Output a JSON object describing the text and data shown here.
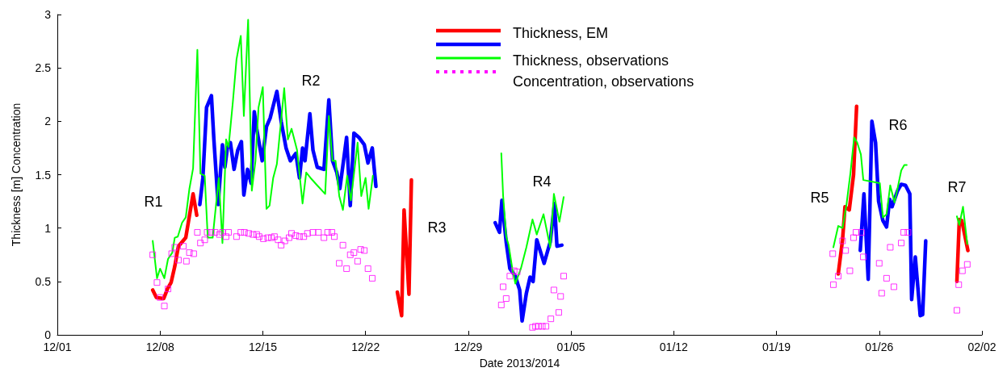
{
  "chart_data": {
    "type": "line",
    "xlabel": "Date 2013/2014",
    "ylabel": "Thickness [m] Concentration",
    "xlim": [
      "2013-12-01",
      "2014-02-02"
    ],
    "xticks": [
      {
        "value": "2013-12-01",
        "label": "12/01"
      },
      {
        "value": "2013-12-08",
        "label": "12/08"
      },
      {
        "value": "2013-12-15",
        "label": "12/15"
      },
      {
        "value": "2013-12-22",
        "label": "12/22"
      },
      {
        "value": "2013-12-29",
        "label": "12/29"
      },
      {
        "value": "2014-01-05",
        "label": "01/05"
      },
      {
        "value": "2014-01-12",
        "label": "01/12"
      },
      {
        "value": "2014-01-19",
        "label": "01/19"
      },
      {
        "value": "2014-01-26",
        "label": "01/26"
      },
      {
        "value": "2014-02-02",
        "label": "02/02"
      }
    ],
    "ylim": [
      0,
      3
    ],
    "yticks": [
      0,
      0.5,
      1,
      1.5,
      2,
      2.5,
      3
    ],
    "grid": false,
    "legend": "top",
    "annotations": [
      "R1",
      "R2",
      "R3",
      "R4",
      "R5",
      "R6",
      "R7"
    ],
    "series": [
      {
        "name": "Thickness, EM",
        "color": "#ff0000",
        "x": [
          "2013-12-07T12:00",
          "2013-12-07T18:00",
          "2013-12-08T06:00",
          "2013-12-08T12:00",
          "2013-12-08T18:00",
          "2013-12-09T00:00",
          "2013-12-09T06:00",
          "2013-12-09T18:00",
          "2013-12-10T06:00",
          "2013-12-10T12:00",
          "2013-12-17T00:00",
          "2013-12-24T04:00",
          "2013-12-24T11:00",
          "2013-12-24T15:00",
          "2013-12-24T23:00",
          "2013-12-25T03:00",
          "2014-01-10T00:00",
          "2014-01-23T05:00",
          "2014-01-23T12:00",
          "2014-01-23T16:00",
          "2014-01-23T23:00",
          "2014-01-24T06:00",
          "2014-01-24T11:00",
          "2014-01-28T00:00",
          "2014-01-31T07:00",
          "2014-01-31T11:00",
          "2014-01-31T15:00",
          "2014-02-01T01:00"
        ],
        "values": [
          0.42,
          0.35,
          0.34,
          0.43,
          0.49,
          0.64,
          0.83,
          0.91,
          1.32,
          1.12,
          null,
          0.4,
          0.18,
          1.17,
          0.38,
          1.45,
          null,
          0.57,
          0.89,
          1.2,
          1.17,
          1.5,
          2.14,
          null,
          0.5,
          1.08,
          1.07,
          0.79
        ]
      },
      {
        "color": "#0000ff",
        "x": [
          "2013-12-10T17:00",
          "2013-12-10T22:00",
          "2013-12-11T04:00",
          "2013-12-11T12:00",
          "2013-12-11T16:00",
          "2013-12-11T23:00",
          "2013-12-12T06:00",
          "2013-12-12T10:00",
          "2013-12-12T14:00",
          "2013-12-12T19:00",
          "2013-12-13T01:00",
          "2013-12-13T07:00",
          "2013-12-13T13:00",
          "2013-12-13T17:00",
          "2013-12-13T23:00",
          "2013-12-14T05:00",
          "2013-12-14T10:00",
          "2013-12-14T14:00",
          "2013-12-14T23:00",
          "2013-12-15T06:00",
          "2013-12-15T12:00",
          "2013-12-15T23:00",
          "2013-12-16T06:00",
          "2013-12-16T14:00",
          "2013-12-16T21:00",
          "2013-12-17T06:00",
          "2013-12-17T12:00",
          "2013-12-17T17:00",
          "2013-12-17T21:00",
          "2013-12-18T05:00",
          "2013-12-18T10:00",
          "2013-12-18T17:00",
          "2013-12-19T04:00",
          "2013-12-19T12:00",
          "2013-12-19T18:00",
          "2013-12-20T01:00",
          "2013-12-20T06:00",
          "2013-12-20T17:00",
          "2013-12-20T23:00",
          "2013-12-21T05:00",
          "2013-12-21T13:00",
          "2013-12-21T22:00",
          "2013-12-22T04:00",
          "2013-12-22T11:00",
          "2013-12-22T17:00",
          "2013-12-27T00:00",
          "2013-12-30T20:00",
          "2013-12-31T03:00",
          "2013-12-31T07:00",
          "2013-12-31T14:00",
          "2013-12-31T20:00",
          "2014-01-01T05:00",
          "2014-01-01T12:00",
          "2014-01-01T16:00",
          "2014-01-01T23:00",
          "2014-01-02T05:00",
          "2014-01-02T10:00",
          "2014-01-02T16:00",
          "2014-01-03T04:00",
          "2014-01-03T14:00",
          "2014-01-03T21:00",
          "2014-01-04T01:00",
          "2014-01-04T09:00",
          "2014-01-15T00:00",
          "2014-01-24T17:00",
          "2014-01-24T23:00",
          "2014-01-25T06:00",
          "2014-01-25T12:00",
          "2014-01-25T18:00",
          "2014-01-25T23:00",
          "2014-01-26T06:00",
          "2014-01-26T12:00",
          "2014-01-26T17:00",
          "2014-01-26T21:00",
          "2014-01-27T06:00",
          "2014-01-27T12:00",
          "2014-01-27T19:00",
          "2014-01-28T02:00",
          "2014-01-28T05:00",
          "2014-01-28T11:00",
          "2014-01-28T19:00",
          "2014-01-28T23:00",
          "2014-01-29T04:00"
        ],
        "values": [
          1.22,
          1.47,
          2.13,
          2.24,
          1.83,
          1.22,
          1.78,
          1.57,
          1.75,
          1.8,
          1.55,
          1.73,
          1.81,
          1.31,
          1.55,
          1.42,
          2.09,
          1.93,
          1.63,
          1.95,
          2.03,
          2.28,
          2.0,
          1.75,
          1.63,
          1.7,
          1.47,
          1.75,
          1.63,
          2.07,
          1.73,
          1.57,
          1.55,
          2.2,
          1.63,
          1.52,
          1.37,
          1.85,
          1.21,
          1.89,
          1.85,
          1.78,
          1.61,
          1.75,
          1.39,
          null,
          1.05,
          0.96,
          1.26,
          0.87,
          0.62,
          0.55,
          0.42,
          0.13,
          0.39,
          0.54,
          0.5,
          0.89,
          0.67,
          0.87,
          1.23,
          0.83,
          0.84,
          null,
          0.79,
          1.32,
          0.52,
          2.0,
          1.8,
          1.25,
          1.07,
          1.01,
          1.27,
          1.2,
          1.35,
          1.41,
          1.4,
          1.32,
          0.33,
          0.73,
          0.18,
          0.19,
          0.88
        ]
      },
      {
        "name": "Thickness, observations",
        "color": "#00ff00",
        "x": [
          "2013-12-07T12:00",
          "2013-12-07T19:00",
          "2013-12-08T00:00",
          "2013-12-08T07:00",
          "2013-12-08T13:00",
          "2013-12-08T20:00",
          "2013-12-09T00:00",
          "2013-12-09T05:00",
          "2013-12-09T12:00",
          "2013-12-09T18:00",
          "2013-12-10T00:00",
          "2013-12-10T06:00",
          "2013-12-10T13:00",
          "2013-12-10T18:00",
          "2013-12-11T01:00",
          "2013-12-11T06:00",
          "2013-12-11T14:00",
          "2013-12-12T00:00",
          "2013-12-12T06:00",
          "2013-12-12T12:00",
          "2013-12-12T16:00",
          "2013-12-12T23:00",
          "2013-12-13T05:00",
          "2013-12-13T12:00",
          "2013-12-13T17:00",
          "2013-12-14T00:00",
          "2013-12-14T06:00",
          "2013-12-14T12:00",
          "2013-12-14T17:00",
          "2013-12-15T00:00",
          "2013-12-15T06:00",
          "2013-12-15T11:00",
          "2013-12-15T17:00",
          "2013-12-15T23:00",
          "2013-12-16T11:00",
          "2013-12-16T17:00",
          "2013-12-16T23:00",
          "2013-12-17T08:00",
          "2013-12-17T17:00",
          "2013-12-17T23:00",
          "2013-12-18T06:00",
          "2013-12-18T17:00",
          "2013-12-19T06:00",
          "2013-12-19T12:00",
          "2013-12-19T18:00",
          "2013-12-19T23:00",
          "2013-12-20T05:00",
          "2013-12-20T11:00",
          "2013-12-20T18:00",
          "2013-12-21T00:00",
          "2013-12-21T11:00",
          "2013-12-21T17:00",
          "2013-12-22T00:00",
          "2013-12-22T05:00",
          "2013-12-22T12:00",
          "2013-12-27T00:00",
          "2013-12-31T06:00",
          "2013-12-31T09:00",
          "2013-12-31T14:00",
          "2013-12-31T18:00",
          "2014-01-01T00:00",
          "2014-01-01T05:00",
          "2014-01-01T14:00",
          "2014-01-01T23:00",
          "2014-01-02T09:00",
          "2014-01-02T16:00",
          "2014-01-03T03:00",
          "2014-01-03T14:00",
          "2014-01-03T20:00",
          "2014-01-04T05:00",
          "2014-01-04T12:00",
          "2014-01-15T00:00",
          "2014-01-22T21:00",
          "2014-01-23T05:00",
          "2014-01-23T12:00",
          "2014-01-23T18:00",
          "2014-01-24T01:00",
          "2014-01-24T07:00",
          "2014-01-24T12:00",
          "2014-01-24T18:00",
          "2014-01-24T22:00",
          "2014-01-26T01:00",
          "2014-01-26T06:00",
          "2014-01-26T12:00",
          "2014-01-26T18:00",
          "2014-01-27T01:00",
          "2014-01-27T07:00",
          "2014-01-27T12:00",
          "2014-01-27T17:00",
          "2014-01-27T21:00",
          "2014-01-29T12:00",
          "2014-01-31T07:00",
          "2014-01-31T11:00",
          "2014-01-31T17:00",
          "2014-02-01T00:00"
        ],
        "values": [
          0.88,
          0.53,
          0.62,
          0.53,
          0.71,
          0.77,
          0.91,
          0.92,
          1.05,
          1.1,
          1.37,
          1.56,
          2.67,
          1.51,
          1.49,
          0.91,
          0.91,
          1.47,
          0.86,
          1.83,
          1.76,
          2.18,
          2.58,
          2.8,
          2.05,
          2.95,
          1.35,
          1.63,
          2.13,
          2.32,
          1.18,
          1.21,
          1.47,
          1.6,
          2.31,
          1.83,
          1.93,
          1.73,
          1.23,
          1.52,
          1.47,
          1.4,
          1.32,
          2.05,
          1.63,
          1.63,
          1.3,
          1.17,
          1.49,
          1.26,
          1.8,
          1.3,
          1.47,
          1.18,
          1.49,
          null,
          1.7,
          1.3,
          0.92,
          0.84,
          0.62,
          0.48,
          0.62,
          0.82,
          1.08,
          0.94,
          1.13,
          0.82,
          1.32,
          1.06,
          1.29,
          null,
          0.82,
          1.02,
          1.0,
          1.2,
          1.52,
          1.85,
          1.8,
          1.69,
          1.45,
          1.42,
          1.1,
          1.13,
          1.4,
          1.24,
          1.4,
          1.54,
          1.59,
          1.59,
          null,
          1.11,
          1.03,
          1.2,
          0.85
        ]
      },
      {
        "name": "Concentration, observations",
        "type": "scatter",
        "marker": "square",
        "line_style": "dotted",
        "color": "#ff00ff",
        "x": [
          "2013-12-07T12:00",
          "2013-12-07T19:00",
          "2013-12-08T00:00",
          "2013-12-08T07:00",
          "2013-12-08T13:00",
          "2013-12-08T19:00",
          "2013-12-09T00:00",
          "2013-12-09T06:00",
          "2013-12-09T14:00",
          "2013-12-09T19:00",
          "2013-12-10T00:00",
          "2013-12-10T07:00",
          "2013-12-10T13:00",
          "2013-12-10T18:00",
          "2013-12-11T01:00",
          "2013-12-11T05:00",
          "2013-12-11T12:00",
          "2013-12-11T18:00",
          "2013-12-12T01:00",
          "2013-12-12T06:00",
          "2013-12-12T12:00",
          "2013-12-12T16:00",
          "2013-12-13T05:00",
          "2013-12-13T12:00",
          "2013-12-13T18:00",
          "2013-12-14T01:00",
          "2013-12-14T08:00",
          "2013-12-14T14:00",
          "2013-12-14T18:00",
          "2013-12-15T01:00",
          "2013-12-15T08:00",
          "2013-12-15T14:00",
          "2013-12-15T19:00",
          "2013-12-16T01:00",
          "2013-12-16T06:00",
          "2013-12-16T12:00",
          "2013-12-16T19:00",
          "2013-12-16T23:00",
          "2013-12-17T06:00",
          "2013-12-17T12:00",
          "2013-12-17T19:00",
          "2013-12-18T01:00",
          "2013-12-18T10:00",
          "2013-12-18T19:00",
          "2013-12-19T04:00",
          "2013-12-19T10:00",
          "2013-12-19T17:00",
          "2013-12-19T21:00",
          "2013-12-20T05:00",
          "2013-12-20T11:00",
          "2013-12-20T17:00",
          "2013-12-20T23:00",
          "2013-12-21T05:00",
          "2013-12-21T11:00",
          "2013-12-21T16:00",
          "2013-12-21T22:00",
          "2013-12-22T04:00",
          "2013-12-22T11:00",
          "2013-12-31T06:00",
          "2013-12-31T09:00",
          "2013-12-31T14:00",
          "2013-12-31T20:00",
          "2014-01-01T03:00",
          "2014-01-01T08:00",
          "2014-01-02T09:00",
          "2014-01-02T14:00",
          "2014-01-02T19:00",
          "2014-01-03T01:00",
          "2014-01-03T07:00",
          "2014-01-03T15:00",
          "2014-01-03T20:00",
          "2014-01-04T04:00",
          "2014-01-04T07:00",
          "2014-01-04T12:00",
          "2014-01-22T20:00",
          "2014-01-22T21:00",
          "2014-01-23T05:00",
          "2014-01-23T12:00",
          "2014-01-23T17:00",
          "2014-01-24T00:00",
          "2014-01-24T06:00",
          "2014-01-24T10:00",
          "2014-01-24T19:00",
          "2014-01-24T22:00",
          "2014-01-26T00:00",
          "2014-01-26T04:00",
          "2014-01-26T12:00",
          "2014-01-26T18:00",
          "2014-01-27T00:00",
          "2014-01-27T12:00",
          "2014-01-27T16:00",
          "2014-01-27T23:00",
          "2014-01-31T07:00",
          "2014-01-31T10:00",
          "2014-01-31T16:00",
          "2014-02-01T00:00"
        ],
        "values": [
          0.75,
          0.49,
          0.35,
          0.27,
          0.43,
          0.76,
          0.82,
          0.7,
          0.83,
          0.69,
          0.77,
          0.76,
          0.96,
          0.86,
          0.89,
          0.96,
          0.96,
          0.96,
          0.94,
          0.96,
          0.92,
          0.96,
          0.92,
          0.96,
          0.96,
          0.95,
          0.94,
          0.94,
          0.92,
          0.9,
          0.91,
          0.91,
          0.92,
          0.89,
          0.84,
          0.88,
          0.91,
          0.95,
          0.93,
          0.92,
          0.92,
          0.95,
          0.96,
          0.96,
          0.91,
          0.96,
          0.96,
          0.92,
          0.67,
          0.84,
          0.62,
          0.75,
          0.77,
          0.69,
          0.8,
          0.79,
          0.62,
          0.53,
          0.28,
          0.45,
          0.34,
          0.55,
          0.6,
          0.59,
          0.07,
          0.08,
          0.08,
          0.08,
          0.08,
          0.15,
          0.42,
          0.21,
          0.36,
          0.55,
          0.76,
          0.47,
          0.55,
          0.88,
          0.79,
          0.6,
          0.91,
          0.96,
          0.96,
          0.73,
          0.67,
          0.39,
          0.53,
          0.82,
          0.45,
          0.86,
          0.96,
          0.96,
          0.23,
          0.47,
          0.6,
          0.66
        ]
      }
    ]
  }
}
